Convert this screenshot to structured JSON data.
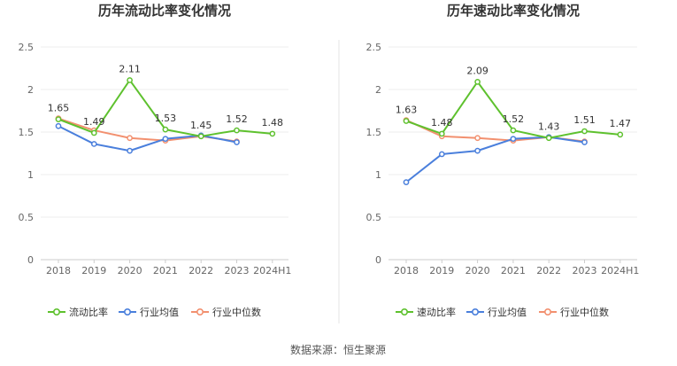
{
  "source_label": "数据来源：恒生聚源",
  "chart_data": [
    {
      "type": "line",
      "title": "历年流动比率变化情况",
      "categories": [
        "2018",
        "2019",
        "2020",
        "2021",
        "2022",
        "2023",
        "2024H1"
      ],
      "ylim": [
        0,
        2.5
      ],
      "yticks": [
        "0",
        "0.5",
        "1",
        "1.5",
        "2",
        "2.5"
      ],
      "grid": true,
      "legend_position": "bottom",
      "series": [
        {
          "name": "流动比率",
          "color": "#5ec12e",
          "values": [
            1.65,
            1.49,
            2.11,
            1.53,
            1.45,
            1.52,
            1.48
          ],
          "labels": [
            "1.65",
            "1.49",
            "2.11",
            "1.53",
            "1.45",
            "1.52",
            "1.48"
          ]
        },
        {
          "name": "行业均值",
          "color": "#4a7fdc",
          "values": [
            1.57,
            1.36,
            1.28,
            1.42,
            1.46,
            1.38,
            null
          ]
        },
        {
          "name": "行业中位数",
          "color": "#f2906f",
          "values": [
            1.66,
            1.52,
            1.43,
            1.4,
            1.45,
            1.39,
            null
          ]
        }
      ]
    },
    {
      "type": "line",
      "title": "历年速动比率变化情况",
      "categories": [
        "2018",
        "2019",
        "2020",
        "2021",
        "2022",
        "2023",
        "2024H1"
      ],
      "ylim": [
        0,
        2.5
      ],
      "yticks": [
        "0",
        "0.5",
        "1",
        "1.5",
        "2",
        "2.5"
      ],
      "grid": true,
      "legend_position": "bottom",
      "series": [
        {
          "name": "速动比率",
          "color": "#5ec12e",
          "values": [
            1.63,
            1.48,
            2.09,
            1.52,
            1.43,
            1.51,
            1.47
          ],
          "labels": [
            "1.63",
            "1.48",
            "2.09",
            "1.52",
            "1.43",
            "1.51",
            "1.47"
          ]
        },
        {
          "name": "行业均值",
          "color": "#4a7fdc",
          "values": [
            0.91,
            1.24,
            1.28,
            1.42,
            1.44,
            1.38,
            null
          ]
        },
        {
          "name": "行业中位数",
          "color": "#f2906f",
          "values": [
            1.64,
            1.45,
            1.43,
            1.4,
            1.44,
            1.39,
            null
          ]
        }
      ]
    }
  ]
}
